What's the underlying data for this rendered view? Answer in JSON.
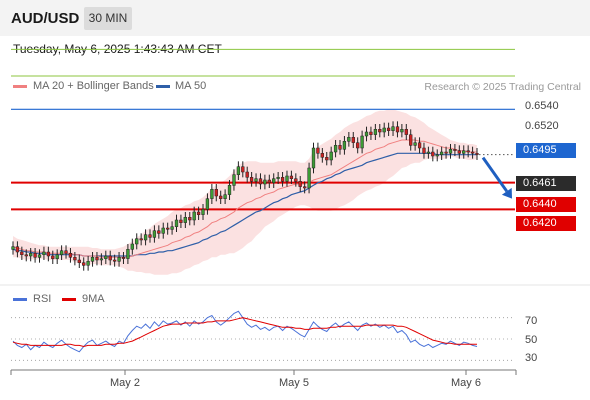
{
  "header": {
    "pair": "AUD/USD",
    "timeframe": "30 MIN"
  },
  "timestamp": "Tuesday, May 6, 2025 1:43:43 AM CET",
  "copyright": "Research © 2025 Trading Central",
  "legend": {
    "ma20": {
      "label": "MA 20 + Bollinger Bands",
      "color": "#f08080"
    },
    "ma50": {
      "label": "MA 50",
      "color": "#2f5fa8"
    },
    "rsi": {
      "label": "RSI",
      "color": "#4a72d8"
    },
    "ma9": {
      "label": "9MA",
      "color": "#e00000"
    }
  },
  "levels": {
    "r2": {
      "label": "0.6540",
      "value": 0.654,
      "color": "#8cc63f"
    },
    "r1": {
      "label": "0.6520",
      "value": 0.652,
      "color": "#8cc63f"
    },
    "pivot": {
      "label": "0.6495",
      "value": 0.6495,
      "color": "#1e66d0"
    },
    "last": {
      "label": "0.6461",
      "value": 0.6461,
      "color": "#2b2b2b"
    },
    "s1": {
      "label": "0.6440",
      "value": 0.644,
      "color": "#e00000"
    },
    "s2": {
      "label": "0.6420",
      "value": 0.642,
      "color": "#e00000"
    }
  },
  "x_axis": {
    "ticks": [
      "May 2",
      "May 5",
      "May 6"
    ]
  },
  "rsi_axis": {
    "ticks": [
      "70",
      "50",
      "30"
    ]
  },
  "chart_data": [
    {
      "type": "candlestick",
      "title": "",
      "ylim": [
        0.6364,
        0.655
      ],
      "interval": "30 MIN",
      "close": [
        0.6392,
        0.6388,
        0.6386,
        0.6385,
        0.6387,
        0.6384,
        0.6386,
        0.6388,
        0.6385,
        0.6383,
        0.6386,
        0.6389,
        0.6387,
        0.6384,
        0.6382,
        0.638,
        0.6378,
        0.6381,
        0.6384,
        0.6382,
        0.6383,
        0.6385,
        0.6382,
        0.6381,
        0.6384,
        0.6383,
        0.639,
        0.6394,
        0.6398,
        0.6397,
        0.6401,
        0.6399,
        0.6404,
        0.6402,
        0.6406,
        0.6405,
        0.6407,
        0.6412,
        0.641,
        0.6414,
        0.6412,
        0.6418,
        0.6416,
        0.642,
        0.6428,
        0.6435,
        0.643,
        0.6428,
        0.6431,
        0.6438,
        0.6446,
        0.6452,
        0.6448,
        0.6444,
        0.6441,
        0.6443,
        0.6439,
        0.6442,
        0.644,
        0.6443,
        0.6444,
        0.6441,
        0.6445,
        0.6443,
        0.6441,
        0.6437,
        0.6436,
        0.6451,
        0.6466,
        0.6462,
        0.6459,
        0.6457,
        0.6463,
        0.6468,
        0.6465,
        0.6471,
        0.6474,
        0.647,
        0.6466,
        0.6475,
        0.6478,
        0.6476,
        0.648,
        0.6478,
        0.6481,
        0.6479,
        0.6482,
        0.6478,
        0.648,
        0.6476,
        0.6468,
        0.647,
        0.6466,
        0.6462,
        0.6463,
        0.646,
        0.6461,
        0.6463,
        0.6462,
        0.6465,
        0.6464,
        0.6462,
        0.6464,
        0.6463,
        0.6462,
        0.6461
      ],
      "ma20": [
        0.6392,
        0.6391,
        0.639,
        0.6389,
        0.6389,
        0.6388,
        0.6388,
        0.6388,
        0.6387,
        0.6387,
        0.6387,
        0.6387,
        0.6387,
        0.6387,
        0.6386,
        0.6386,
        0.6385,
        0.6385,
        0.6385,
        0.6385,
        0.6384,
        0.6384,
        0.6384,
        0.6384,
        0.6384,
        0.6384,
        0.6384,
        0.6385,
        0.6386,
        0.6387,
        0.6388,
        0.6389,
        0.639,
        0.6391,
        0.6392,
        0.6393,
        0.6395,
        0.6396,
        0.6397,
        0.6399,
        0.64,
        0.6402,
        0.6403,
        0.6405,
        0.6407,
        0.641,
        0.6411,
        0.6413,
        0.6414,
        0.6416,
        0.6418,
        0.6421,
        0.6423,
        0.6425,
        0.6426,
        0.6428,
        0.6429,
        0.6431,
        0.6432,
        0.6433,
        0.6435,
        0.6436,
        0.6437,
        0.6438,
        0.6439,
        0.6439,
        0.6439,
        0.644,
        0.6442,
        0.6443,
        0.6444,
        0.6445,
        0.6446,
        0.6448,
        0.645,
        0.6452,
        0.6454,
        0.6456,
        0.6458,
        0.646,
        0.6462,
        0.6463,
        0.6465,
        0.6466,
        0.6467,
        0.6469,
        0.647,
        0.6471,
        0.6472,
        0.6472,
        0.6472,
        0.6472,
        0.6471,
        0.6471,
        0.647,
        0.6469,
        0.6468,
        0.6467,
        0.6466,
        0.6466,
        0.6465,
        0.6464,
        0.6464,
        0.6463,
        0.6463,
        0.6463
      ],
      "bollinger_upper": [
        0.64,
        0.6398,
        0.6397,
        0.6396,
        0.6395,
        0.6394,
        0.6393,
        0.6393,
        0.6392,
        0.6392,
        0.6392,
        0.6392,
        0.6392,
        0.6392,
        0.6392,
        0.6392,
        0.6392,
        0.6392,
        0.6391,
        0.6391,
        0.639,
        0.639,
        0.639,
        0.639,
        0.6391,
        0.6392,
        0.6394,
        0.6396,
        0.6399,
        0.6401,
        0.6404,
        0.6406,
        0.6409,
        0.6411,
        0.6413,
        0.6415,
        0.6418,
        0.642,
        0.6421,
        0.6423,
        0.6424,
        0.6426,
        0.6427,
        0.6429,
        0.6432,
        0.6436,
        0.6438,
        0.644,
        0.6442,
        0.6445,
        0.6449,
        0.6453,
        0.6455,
        0.6456,
        0.6456,
        0.6456,
        0.6455,
        0.6455,
        0.6455,
        0.6455,
        0.6456,
        0.6456,
        0.6456,
        0.6456,
        0.6456,
        0.6455,
        0.6455,
        0.6458,
        0.6464,
        0.6467,
        0.6469,
        0.6471,
        0.6473,
        0.6476,
        0.6478,
        0.6481,
        0.6483,
        0.6485,
        0.6486,
        0.6488,
        0.649,
        0.6491,
        0.6493,
        0.6494,
        0.6494,
        0.6495,
        0.6495,
        0.6494,
        0.6493,
        0.6492,
        0.649,
        0.6489,
        0.6487,
        0.6485,
        0.6482,
        0.648,
        0.6478,
        0.6476,
        0.6474,
        0.6472,
        0.6471,
        0.647,
        0.647,
        0.6469,
        0.6469,
        0.6468
      ],
      "bollinger_lower": [
        0.6384,
        0.6384,
        0.6383,
        0.6382,
        0.6383,
        0.6382,
        0.6383,
        0.6383,
        0.6382,
        0.6382,
        0.6382,
        0.6382,
        0.6382,
        0.6382,
        0.638,
        0.638,
        0.6378,
        0.6378,
        0.6379,
        0.6379,
        0.6378,
        0.6378,
        0.6378,
        0.6378,
        0.6377,
        0.6376,
        0.6374,
        0.6374,
        0.6373,
        0.6373,
        0.6372,
        0.6372,
        0.6371,
        0.6371,
        0.6371,
        0.6371,
        0.6372,
        0.6372,
        0.6373,
        0.6375,
        0.6376,
        0.6378,
        0.6379,
        0.6381,
        0.6382,
        0.6384,
        0.6384,
        0.6386,
        0.6386,
        0.6387,
        0.6387,
        0.6389,
        0.6391,
        0.6394,
        0.6396,
        0.64,
        0.6403,
        0.6407,
        0.6409,
        0.6411,
        0.6414,
        0.6416,
        0.6418,
        0.642,
        0.6422,
        0.6423,
        0.6423,
        0.6422,
        0.642,
        0.6419,
        0.6419,
        0.6419,
        0.6419,
        0.642,
        0.6422,
        0.6423,
        0.6425,
        0.6427,
        0.643,
        0.6432,
        0.6434,
        0.6435,
        0.6437,
        0.6438,
        0.644,
        0.6443,
        0.6445,
        0.6448,
        0.6451,
        0.6452,
        0.6454,
        0.6455,
        0.6455,
        0.6457,
        0.6458,
        0.6458,
        0.6458,
        0.6458,
        0.6458,
        0.646,
        0.6459,
        0.6458,
        0.6458,
        0.6457,
        0.6457,
        0.6458
      ],
      "ma50": [
        0.639,
        0.6389,
        0.6389,
        0.6388,
        0.6388,
        0.6387,
        0.6387,
        0.6387,
        0.6386,
        0.6386,
        0.6386,
        0.6386,
        0.6386,
        0.6386,
        0.6386,
        0.6386,
        0.6385,
        0.6385,
        0.6385,
        0.6385,
        0.6385,
        0.6385,
        0.6385,
        0.6385,
        0.6385,
        0.6385,
        0.6385,
        0.6385,
        0.6386,
        0.6386,
        0.6386,
        0.6387,
        0.6387,
        0.6388,
        0.6388,
        0.6389,
        0.6389,
        0.639,
        0.6391,
        0.6392,
        0.6393,
        0.6394,
        0.6395,
        0.6397,
        0.6398,
        0.64,
        0.6401,
        0.6403,
        0.6404,
        0.6406,
        0.6408,
        0.641,
        0.6412,
        0.6414,
        0.6416,
        0.6418,
        0.6419,
        0.6421,
        0.6423,
        0.6425,
        0.6426,
        0.6428,
        0.6429,
        0.6431,
        0.6432,
        0.6433,
        0.6434,
        0.6436,
        0.6438,
        0.644,
        0.6441,
        0.6443,
        0.6444,
        0.6446,
        0.6447,
        0.6449,
        0.645,
        0.6451,
        0.6452,
        0.6453,
        0.6455,
        0.6456,
        0.6457,
        0.6458,
        0.6459,
        0.646,
        0.6461,
        0.6462,
        0.6462,
        0.6462,
        0.6462,
        0.6462,
        0.6462,
        0.6462,
        0.6462,
        0.6462,
        0.6461,
        0.6461,
        0.6461,
        0.6461,
        0.6461,
        0.6461,
        0.6461,
        0.6461,
        0.6461,
        0.6461
      ],
      "forecast": [
        0.6461,
        0.644
      ]
    },
    {
      "type": "line",
      "title": "",
      "ylim": [
        20,
        80
      ],
      "grid_values": [
        70,
        50,
        30
      ],
      "series": [
        {
          "name": "RSI",
          "values": [
            48,
            44,
            42,
            45,
            40,
            44,
            42,
            47,
            44,
            42,
            46,
            49,
            45,
            42,
            40,
            38,
            43,
            47,
            49,
            44,
            46,
            48,
            45,
            43,
            48,
            46,
            53,
            58,
            62,
            60,
            64,
            60,
            66,
            62,
            67,
            64,
            65,
            67,
            63,
            66,
            62,
            67,
            64,
            66,
            70,
            72,
            66,
            63,
            66,
            70,
            74,
            76,
            70,
            64,
            61,
            63,
            59,
            61,
            58,
            61,
            62,
            58,
            62,
            60,
            57,
            54,
            52,
            59,
            66,
            62,
            59,
            57,
            62,
            65,
            61,
            64,
            66,
            62,
            58,
            63,
            65,
            62,
            64,
            61,
            63,
            60,
            62,
            56,
            58,
            54,
            47,
            49,
            45,
            43,
            45,
            42,
            44,
            46,
            45,
            48,
            46,
            44,
            47,
            46,
            44,
            43
          ]
        },
        {
          "name": "9MA",
          "values": [
            47,
            46,
            45,
            45,
            44,
            44,
            44,
            44,
            44,
            44,
            44,
            44,
            45,
            45,
            44,
            44,
            43,
            44,
            44,
            44,
            44,
            45,
            45,
            45,
            46,
            46,
            47,
            48,
            50,
            52,
            54,
            56,
            58,
            60,
            62,
            63,
            64,
            64,
            64,
            65,
            65,
            65,
            65,
            65,
            66,
            66,
            67,
            67,
            67,
            67,
            68,
            69,
            70,
            69,
            68,
            67,
            66,
            65,
            64,
            63,
            62,
            61,
            61,
            61,
            60,
            60,
            59,
            59,
            60,
            60,
            60,
            60,
            61,
            61,
            62,
            62,
            62,
            62,
            62,
            62,
            63,
            63,
            63,
            63,
            63,
            63,
            63,
            62,
            62,
            61,
            59,
            57,
            55,
            53,
            51,
            49,
            48,
            47,
            46,
            46,
            45,
            45,
            45,
            45,
            45,
            45
          ]
        }
      ]
    }
  ]
}
